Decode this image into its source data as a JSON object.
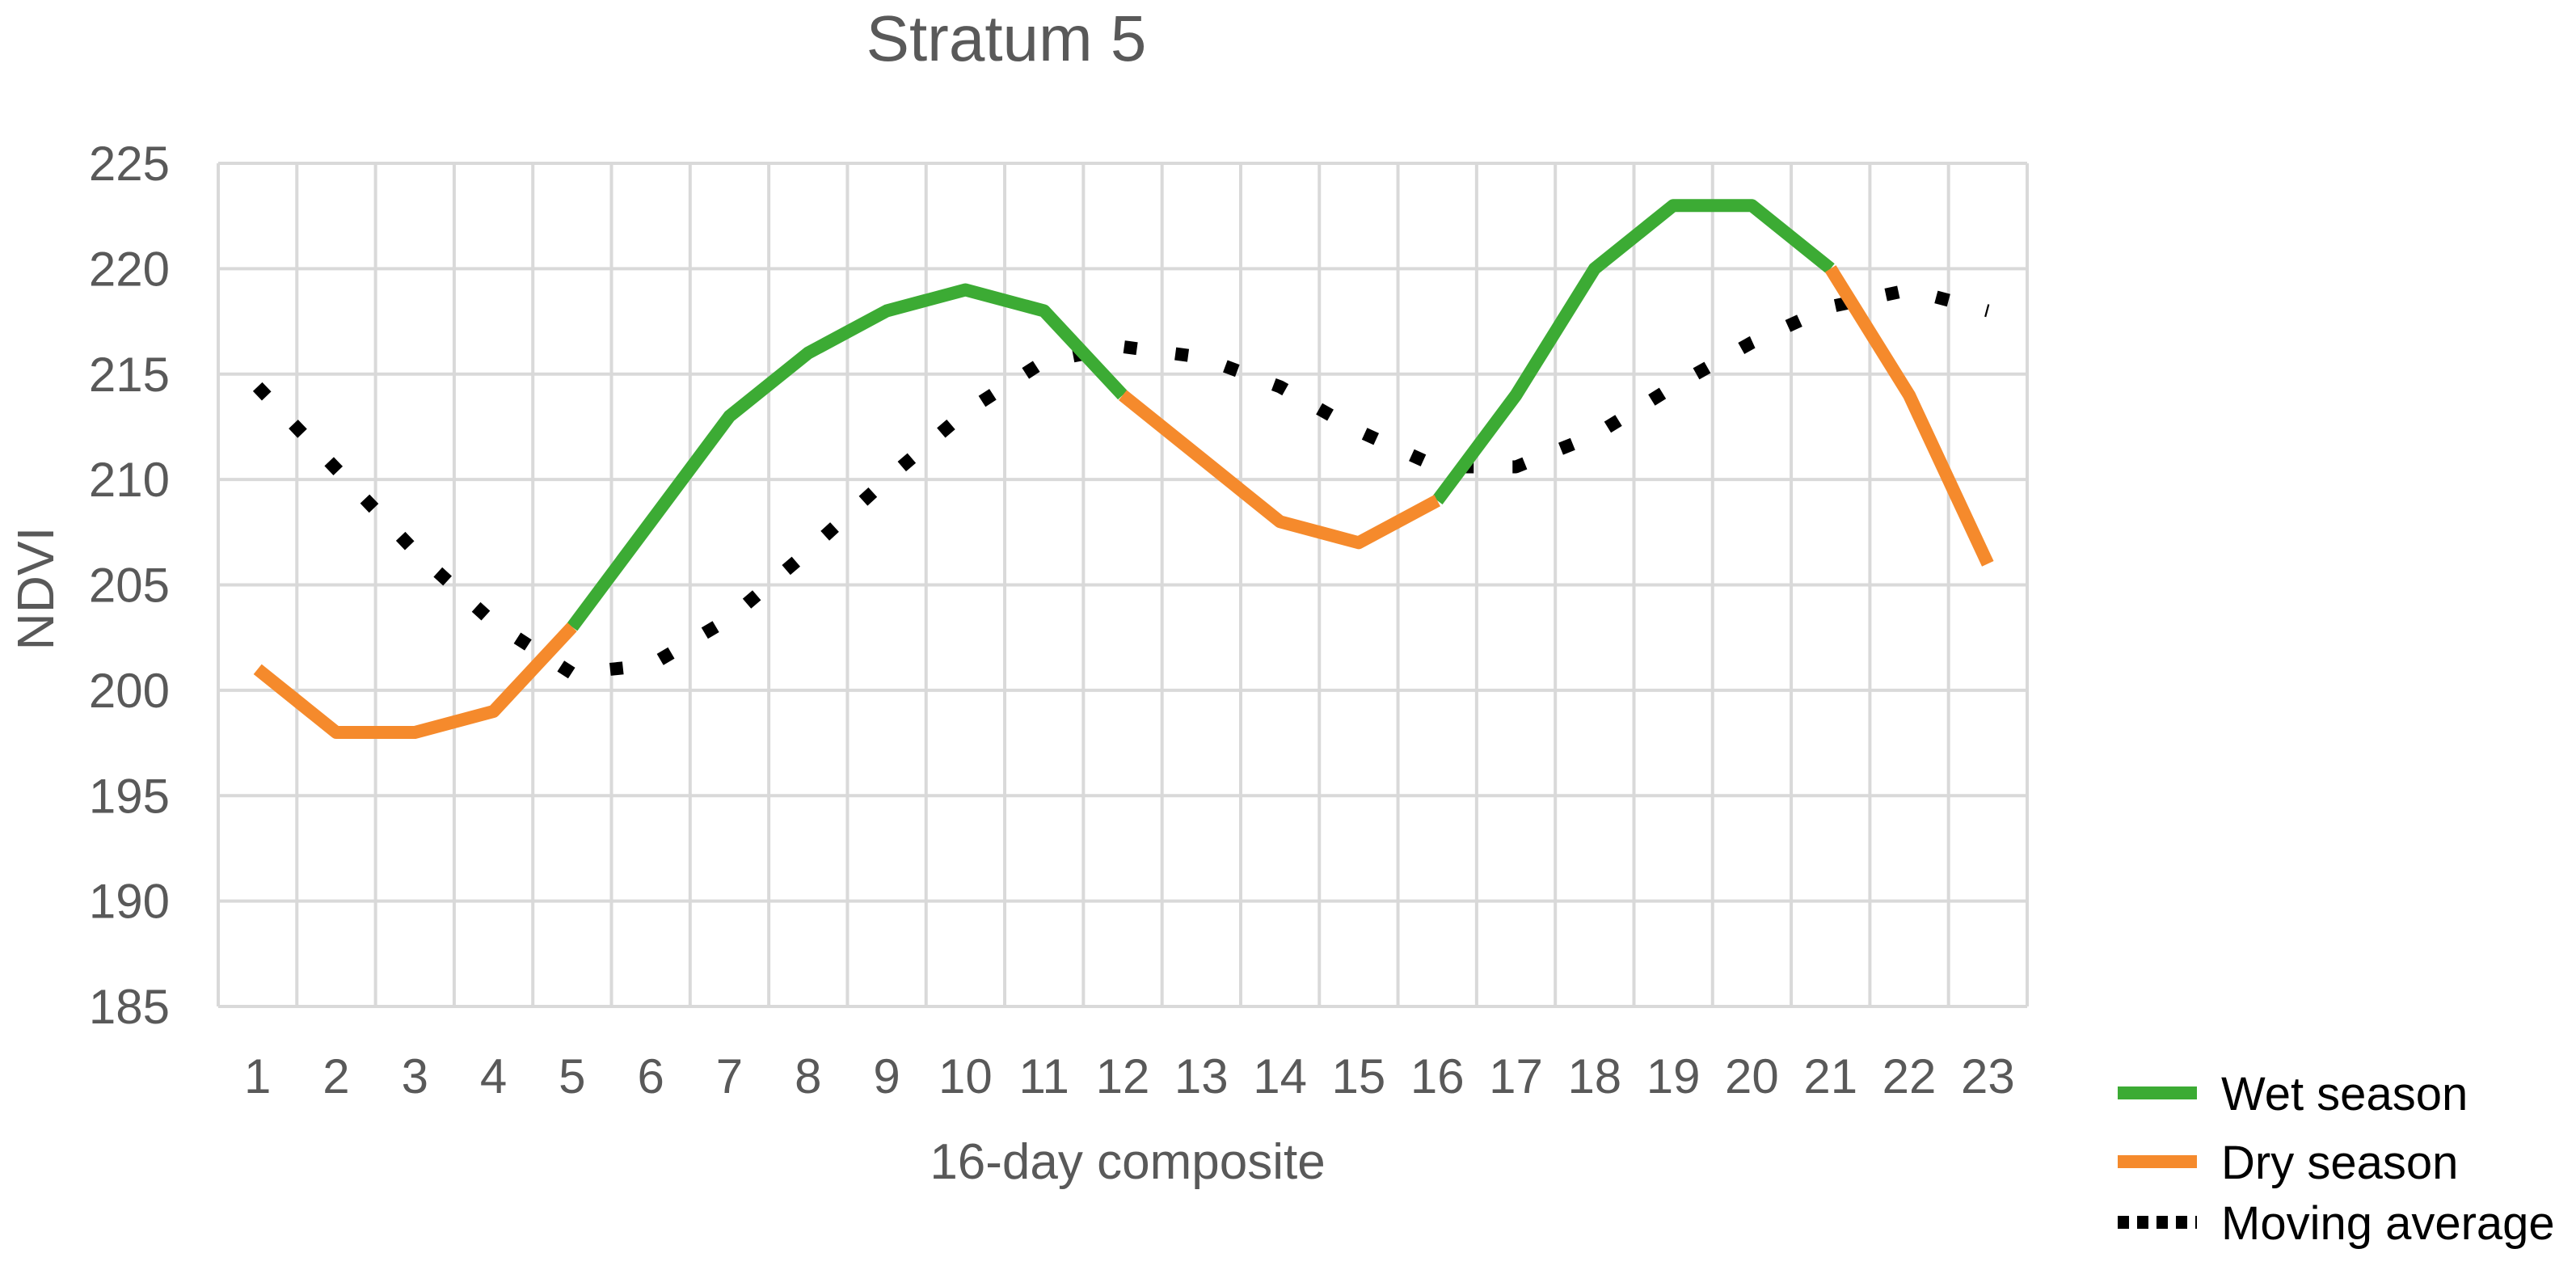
{
  "chart_data": {
    "type": "line",
    "title": "Stratum 5",
    "xlabel": "16-day composite",
    "ylabel": "NDVI",
    "x": [
      1,
      2,
      3,
      4,
      5,
      6,
      7,
      8,
      9,
      10,
      11,
      12,
      13,
      14,
      15,
      16,
      17,
      18,
      19,
      20,
      21,
      22,
      23
    ],
    "ylim": [
      185,
      225
    ],
    "yticks": [
      185,
      190,
      195,
      200,
      205,
      210,
      215,
      220,
      225
    ],
    "grid": true,
    "legend_position": "bottom-right",
    "series": [
      {
        "name": "Wet season",
        "color": "#3cab34",
        "style": "solid",
        "segments": [
          {
            "x": [
              5,
              6,
              7,
              8,
              9,
              10,
              11,
              12
            ],
            "y": [
              203,
              208,
              213,
              216,
              218,
              219,
              218,
              214
            ]
          },
          {
            "x": [
              16,
              17,
              18,
              19,
              20,
              21
            ],
            "y": [
              209,
              214,
              220,
              223,
              223,
              220
            ]
          }
        ]
      },
      {
        "name": "Dry season",
        "color": "#f58a2c",
        "style": "solid",
        "segments": [
          {
            "x": [
              1,
              2,
              3,
              4,
              5
            ],
            "y": [
              201,
              198,
              198,
              199,
              203
            ]
          },
          {
            "x": [
              12,
              13,
              14,
              15,
              16
            ],
            "y": [
              214,
              211,
              208,
              207,
              209
            ]
          },
          {
            "x": [
              21,
              22,
              23
            ],
            "y": [
              220,
              214,
              206
            ]
          }
        ]
      },
      {
        "name": "Moving average",
        "color": "#000000",
        "style": "dotted",
        "segments": [
          {
            "x": [
              1,
              2,
              3,
              4,
              5,
              6,
              7,
              8,
              9,
              10,
              11,
              12,
              13,
              14,
              15,
              16,
              17,
              18,
              19,
              20,
              21,
              22,
              23
            ],
            "y": [
              214.4,
              210.5,
              206.6,
              203.2,
              200.8,
              201.2,
              203.4,
              206.6,
              210,
              213.2,
              215.6,
              216.3,
              215.8,
              214.4,
              212.3,
              210.6,
              210.6,
              212.1,
              214.4,
              216.5,
              218.2,
              219,
              218
            ]
          }
        ]
      }
    ]
  }
}
